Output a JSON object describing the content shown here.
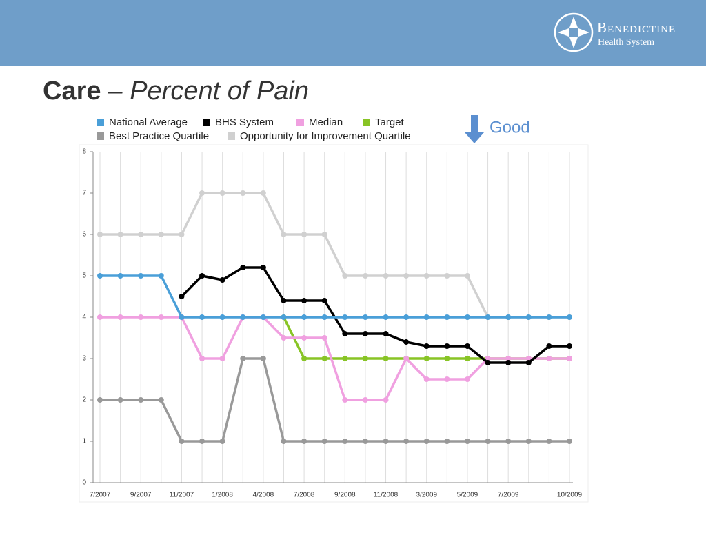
{
  "header": {
    "logo_name": "Benedictine",
    "logo_sub": "Health System"
  },
  "chart_data": {
    "type": "line",
    "title": "Care",
    "subtitle": "– Percent of Pain",
    "annotation": "Good",
    "categories": [
      "7/2007",
      null,
      "9/2007",
      null,
      "11/2007",
      null,
      "1/2008",
      null,
      "4/2008",
      null,
      "7/2008",
      null,
      "9/2008",
      null,
      "11/2008",
      null,
      "3/2009",
      null,
      "5/2009",
      null,
      "7/2009",
      null,
      null,
      "10/2009"
    ],
    "ylim": [
      0,
      8
    ],
    "yticks": [
      0,
      1,
      2,
      3,
      4,
      5,
      6,
      7,
      8
    ],
    "grid": true,
    "legend": "top",
    "series": [
      {
        "name": "National Average",
        "color": "#4a9fd8",
        "values": [
          5,
          5,
          5,
          5,
          4,
          4,
          4,
          4,
          4,
          4,
          4,
          4,
          4,
          4,
          4,
          4,
          4,
          4,
          4,
          4,
          4,
          4,
          4,
          4
        ]
      },
      {
        "name": "BHS System",
        "color": "#000000",
        "values": [
          null,
          null,
          null,
          null,
          4.5,
          5,
          4.9,
          5.2,
          5.2,
          4.4,
          4.4,
          4.4,
          3.6,
          3.6,
          3.6,
          3.4,
          3.3,
          3.3,
          3.3,
          2.9,
          2.9,
          2.9,
          3.3,
          3.3
        ]
      },
      {
        "name": "Median",
        "color": "#f0a0e0",
        "values": [
          4,
          4,
          4,
          4,
          4,
          3,
          3,
          4,
          4,
          3.5,
          3.5,
          3.5,
          2,
          2,
          2,
          3,
          2.5,
          2.5,
          2.5,
          3,
          3,
          3,
          3,
          3
        ]
      },
      {
        "name": "Target",
        "color": "#88c425",
        "values": [
          null,
          null,
          null,
          null,
          null,
          null,
          null,
          null,
          null,
          4,
          3,
          3,
          3,
          3,
          3,
          3,
          3,
          3,
          3,
          3,
          3,
          3,
          3,
          3
        ]
      },
      {
        "name": "Best Practice Quartile",
        "color": "#999999",
        "values": [
          2,
          2,
          2,
          2,
          1,
          1,
          1,
          3,
          3,
          1,
          1,
          1,
          1,
          1,
          1,
          1,
          1,
          1,
          1,
          1,
          1,
          1,
          1,
          1
        ]
      },
      {
        "name": "Opportunity for Improvement Quartile",
        "color": "#d0d0d0",
        "values": [
          6,
          6,
          6,
          6,
          6,
          7,
          7,
          7,
          7,
          6,
          6,
          6,
          5,
          5,
          5,
          5,
          5,
          5,
          5,
          4,
          4,
          4,
          4,
          4
        ]
      }
    ]
  }
}
